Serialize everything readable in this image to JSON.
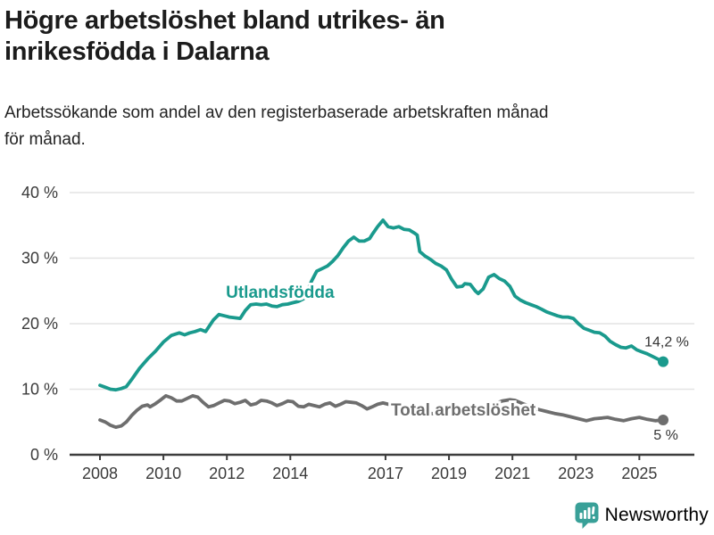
{
  "header": {
    "title_line1": "Högre arbetslöshet bland utrikes- än",
    "title_line2": "inrikesfödda i Dalarna",
    "subtitle_line1": "Arbetssökande som andel av den registerbaserade arbetskraften månad",
    "subtitle_line2": "för månad."
  },
  "footer": {
    "brand": "Newsworthy"
  },
  "colors": {
    "series_foreign_born": "#1a9a8d",
    "series_total": "#6e6e6e",
    "grid": "#e3e3e3",
    "axis": "#3d3d3d",
    "axis_text": "#3a3a3a",
    "value_label_text": "#333333",
    "brand_teal": "#39a098",
    "title_text": "#1c1c1c"
  },
  "chart_data": {
    "type": "line",
    "title": "Högre arbetslöshet bland utrikes- än inrikesfödda i Dalarna",
    "subtitle": "Arbetssökande som andel av den registerbaserade arbetskraften månad för månad.",
    "ylim": [
      0,
      40
    ],
    "x_range": [
      2008,
      2025.75
    ],
    "grid": "horizontal",
    "legend_position": "inline-labels",
    "y_ticks": [
      {
        "value": 40,
        "label": "40 %"
      },
      {
        "value": 30,
        "label": "30 %"
      },
      {
        "value": 20,
        "label": "20 %"
      },
      {
        "value": 10,
        "label": "10 %"
      },
      {
        "value": 0,
        "label": "0 %"
      }
    ],
    "x_ticks": [
      {
        "year": 2008,
        "label": "2008"
      },
      {
        "year": 2010,
        "label": "2010"
      },
      {
        "year": 2012,
        "label": "2012"
      },
      {
        "year": 2014,
        "label": "2014"
      },
      {
        "year": 2017,
        "label": "2017"
      },
      {
        "year": 2019,
        "label": "2019"
      },
      {
        "year": 2021,
        "label": "2021"
      },
      {
        "year": 2023,
        "label": "2023"
      },
      {
        "year": 2025,
        "label": "2025"
      }
    ],
    "series": [
      {
        "name": "Utlandsfödda",
        "color": "#1a9a8d",
        "end_label": "14,2 %",
        "end_value": 14.2,
        "label_anchor": {
          "year": 2011.97,
          "pct": 23.95,
          "anchor": "start"
        },
        "end_label_offset": [
          4,
          -17
        ],
        "points": [
          [
            2008.0,
            10.6
          ],
          [
            2008.17,
            10.3
          ],
          [
            2008.33,
            10.0
          ],
          [
            2008.5,
            9.9
          ],
          [
            2008.67,
            10.1
          ],
          [
            2008.83,
            10.4
          ],
          [
            2009.0,
            11.5
          ],
          [
            2009.25,
            13.2
          ],
          [
            2009.5,
            14.6
          ],
          [
            2009.75,
            15.8
          ],
          [
            2010.0,
            17.2
          ],
          [
            2010.25,
            18.2
          ],
          [
            2010.5,
            18.6
          ],
          [
            2010.67,
            18.3
          ],
          [
            2010.83,
            18.6
          ],
          [
            2011.0,
            18.8
          ],
          [
            2011.17,
            19.1
          ],
          [
            2011.33,
            18.8
          ],
          [
            2011.58,
            20.6
          ],
          [
            2011.75,
            21.4
          ],
          [
            2011.92,
            21.2
          ],
          [
            2012.08,
            21.0
          ],
          [
            2012.25,
            20.9
          ],
          [
            2012.42,
            20.8
          ],
          [
            2012.58,
            22.0
          ],
          [
            2012.75,
            22.9
          ],
          [
            2012.92,
            23.0
          ],
          [
            2013.08,
            22.9
          ],
          [
            2013.25,
            23.0
          ],
          [
            2013.42,
            22.7
          ],
          [
            2013.58,
            22.6
          ],
          [
            2013.75,
            22.9
          ],
          [
            2013.92,
            23.0
          ],
          [
            2014.08,
            23.2
          ],
          [
            2014.25,
            23.4
          ],
          [
            2014.42,
            23.8
          ],
          [
            2014.58,
            25.5
          ],
          [
            2014.67,
            26.5
          ],
          [
            2014.83,
            28.0
          ],
          [
            2015.0,
            28.4
          ],
          [
            2015.17,
            28.8
          ],
          [
            2015.33,
            29.5
          ],
          [
            2015.5,
            30.4
          ],
          [
            2015.67,
            31.6
          ],
          [
            2015.83,
            32.6
          ],
          [
            2016.0,
            33.2
          ],
          [
            2016.17,
            32.6
          ],
          [
            2016.33,
            32.6
          ],
          [
            2016.5,
            33.0
          ],
          [
            2016.58,
            33.6
          ],
          [
            2016.75,
            34.8
          ],
          [
            2016.92,
            35.8
          ],
          [
            2017.08,
            34.8
          ],
          [
            2017.25,
            34.6
          ],
          [
            2017.42,
            34.8
          ],
          [
            2017.58,
            34.4
          ],
          [
            2017.75,
            34.3
          ],
          [
            2017.92,
            33.8
          ],
          [
            2018.0,
            33.5
          ],
          [
            2018.08,
            31.0
          ],
          [
            2018.25,
            30.3
          ],
          [
            2018.42,
            29.8
          ],
          [
            2018.58,
            29.2
          ],
          [
            2018.75,
            28.8
          ],
          [
            2018.92,
            28.2
          ],
          [
            2019.08,
            26.8
          ],
          [
            2019.25,
            25.6
          ],
          [
            2019.42,
            25.7
          ],
          [
            2019.5,
            26.1
          ],
          [
            2019.67,
            26.0
          ],
          [
            2019.83,
            25.0
          ],
          [
            2019.92,
            24.6
          ],
          [
            2020.08,
            25.3
          ],
          [
            2020.25,
            27.1
          ],
          [
            2020.42,
            27.5
          ],
          [
            2020.58,
            26.9
          ],
          [
            2020.75,
            26.5
          ],
          [
            2020.92,
            25.7
          ],
          [
            2021.08,
            24.2
          ],
          [
            2021.25,
            23.6
          ],
          [
            2021.42,
            23.2
          ],
          [
            2021.58,
            22.9
          ],
          [
            2021.75,
            22.6
          ],
          [
            2021.92,
            22.2
          ],
          [
            2022.08,
            21.8
          ],
          [
            2022.25,
            21.5
          ],
          [
            2022.42,
            21.2
          ],
          [
            2022.58,
            21.0
          ],
          [
            2022.75,
            21.0
          ],
          [
            2022.92,
            20.8
          ],
          [
            2023.08,
            20.0
          ],
          [
            2023.25,
            19.3
          ],
          [
            2023.42,
            19.0
          ],
          [
            2023.58,
            18.7
          ],
          [
            2023.75,
            18.6
          ],
          [
            2023.92,
            18.1
          ],
          [
            2024.08,
            17.3
          ],
          [
            2024.25,
            16.8
          ],
          [
            2024.42,
            16.4
          ],
          [
            2024.58,
            16.3
          ],
          [
            2024.75,
            16.6
          ],
          [
            2024.92,
            16.0
          ],
          [
            2025.08,
            15.7
          ],
          [
            2025.25,
            15.4
          ],
          [
            2025.42,
            15.0
          ],
          [
            2025.58,
            14.6
          ],
          [
            2025.75,
            14.2
          ]
        ]
      },
      {
        "name": "Total arbetslöshet",
        "color": "#6e6e6e",
        "end_label": "5 %",
        "end_value": 5.3,
        "label_anchor": {
          "year": 2017.17,
          "pct": 6.0,
          "anchor": "start"
        },
        "end_label_offset": [
          3,
          22
        ],
        "points": [
          [
            2008.0,
            5.3
          ],
          [
            2008.17,
            5.0
          ],
          [
            2008.33,
            4.5
          ],
          [
            2008.5,
            4.2
          ],
          [
            2008.67,
            4.4
          ],
          [
            2008.83,
            5.0
          ],
          [
            2009.0,
            6.0
          ],
          [
            2009.17,
            6.8
          ],
          [
            2009.33,
            7.4
          ],
          [
            2009.5,
            7.6
          ],
          [
            2009.58,
            7.3
          ],
          [
            2009.75,
            7.8
          ],
          [
            2009.92,
            8.4
          ],
          [
            2010.08,
            9.0
          ],
          [
            2010.25,
            8.7
          ],
          [
            2010.42,
            8.2
          ],
          [
            2010.58,
            8.2
          ],
          [
            2010.75,
            8.6
          ],
          [
            2010.92,
            9.0
          ],
          [
            2011.08,
            8.8
          ],
          [
            2011.25,
            8.0
          ],
          [
            2011.42,
            7.3
          ],
          [
            2011.58,
            7.5
          ],
          [
            2011.75,
            7.9
          ],
          [
            2011.92,
            8.3
          ],
          [
            2012.08,
            8.2
          ],
          [
            2012.25,
            7.8
          ],
          [
            2012.42,
            8.0
          ],
          [
            2012.58,
            8.3
          ],
          [
            2012.75,
            7.6
          ],
          [
            2012.92,
            7.8
          ],
          [
            2013.08,
            8.3
          ],
          [
            2013.25,
            8.2
          ],
          [
            2013.42,
            7.9
          ],
          [
            2013.58,
            7.5
          ],
          [
            2013.75,
            7.8
          ],
          [
            2013.92,
            8.2
          ],
          [
            2014.08,
            8.1
          ],
          [
            2014.25,
            7.4
          ],
          [
            2014.42,
            7.3
          ],
          [
            2014.58,
            7.7
          ],
          [
            2014.75,
            7.5
          ],
          [
            2014.92,
            7.3
          ],
          [
            2015.08,
            7.7
          ],
          [
            2015.25,
            7.9
          ],
          [
            2015.42,
            7.4
          ],
          [
            2015.58,
            7.7
          ],
          [
            2015.75,
            8.1
          ],
          [
            2015.92,
            8.0
          ],
          [
            2016.08,
            7.9
          ],
          [
            2016.25,
            7.5
          ],
          [
            2016.42,
            7.0
          ],
          [
            2016.58,
            7.3
          ],
          [
            2016.75,
            7.7
          ],
          [
            2016.92,
            7.9
          ],
          [
            2017.17,
            7.6
          ],
          [
            2017.42,
            7.2
          ],
          [
            2017.67,
            7.0
          ],
          [
            2017.92,
            6.8
          ],
          [
            2018.17,
            6.5
          ],
          [
            2018.42,
            6.3
          ],
          [
            2018.67,
            6.2
          ],
          [
            2018.92,
            6.1
          ],
          [
            2019.17,
            6.0
          ],
          [
            2019.42,
            6.1
          ],
          [
            2019.67,
            6.2
          ],
          [
            2019.92,
            6.4
          ],
          [
            2020.17,
            7.0
          ],
          [
            2020.42,
            7.7
          ],
          [
            2020.67,
            8.2
          ],
          [
            2020.92,
            8.4
          ],
          [
            2021.08,
            8.3
          ],
          [
            2021.33,
            7.8
          ],
          [
            2021.58,
            7.3
          ],
          [
            2021.83,
            6.9
          ],
          [
            2022.08,
            6.6
          ],
          [
            2022.33,
            6.3
          ],
          [
            2022.58,
            6.1
          ],
          [
            2022.83,
            5.8
          ],
          [
            2023.08,
            5.5
          ],
          [
            2023.33,
            5.2
          ],
          [
            2023.58,
            5.5
          ],
          [
            2023.83,
            5.6
          ],
          [
            2024.0,
            5.7
          ],
          [
            2024.25,
            5.4
          ],
          [
            2024.5,
            5.2
          ],
          [
            2024.75,
            5.5
          ],
          [
            2025.0,
            5.7
          ],
          [
            2025.25,
            5.4
          ],
          [
            2025.5,
            5.2
          ],
          [
            2025.75,
            5.3
          ]
        ]
      }
    ]
  }
}
